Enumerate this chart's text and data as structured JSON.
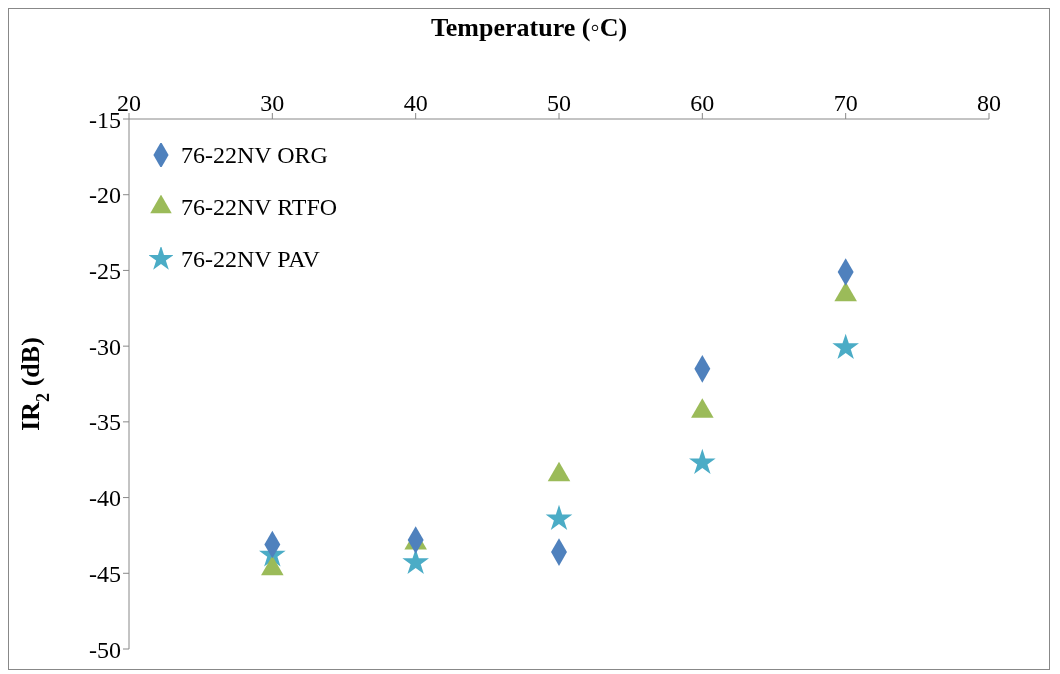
{
  "chart_data": {
    "type": "scatter",
    "xlabel": "Temperature (◦C)",
    "ylabel": "IR$_{2}$ (dB)",
    "x": [
      30,
      40,
      50,
      60,
      70
    ],
    "series": [
      {
        "name": "76-22NV ORG",
        "color": "#4f81bd",
        "marker": "diamond",
        "values": [
          -43.1,
          -42.8,
          -43.6,
          -31.5,
          -25.1
        ]
      },
      {
        "name": "76-22NV RTFO",
        "color": "#9bbb59",
        "marker": "triangle",
        "values": [
          -44.7,
          -43.0,
          -38.5,
          -34.3,
          -26.6
        ]
      },
      {
        "name": "76-22NV PAV",
        "color": "#4bacc6",
        "marker": "star",
        "values": [
          -43.8,
          -44.3,
          -41.4,
          -37.7,
          -30.1
        ]
      }
    ],
    "xlim": [
      20,
      80
    ],
    "xticks": [
      20,
      30,
      40,
      50,
      60,
      70,
      80
    ],
    "ylim": [
      -50,
      -15
    ],
    "yticks": [
      -50,
      -45,
      -40,
      -35,
      -30,
      -25,
      -20,
      -15
    ],
    "grid": false,
    "legend": "top left"
  }
}
